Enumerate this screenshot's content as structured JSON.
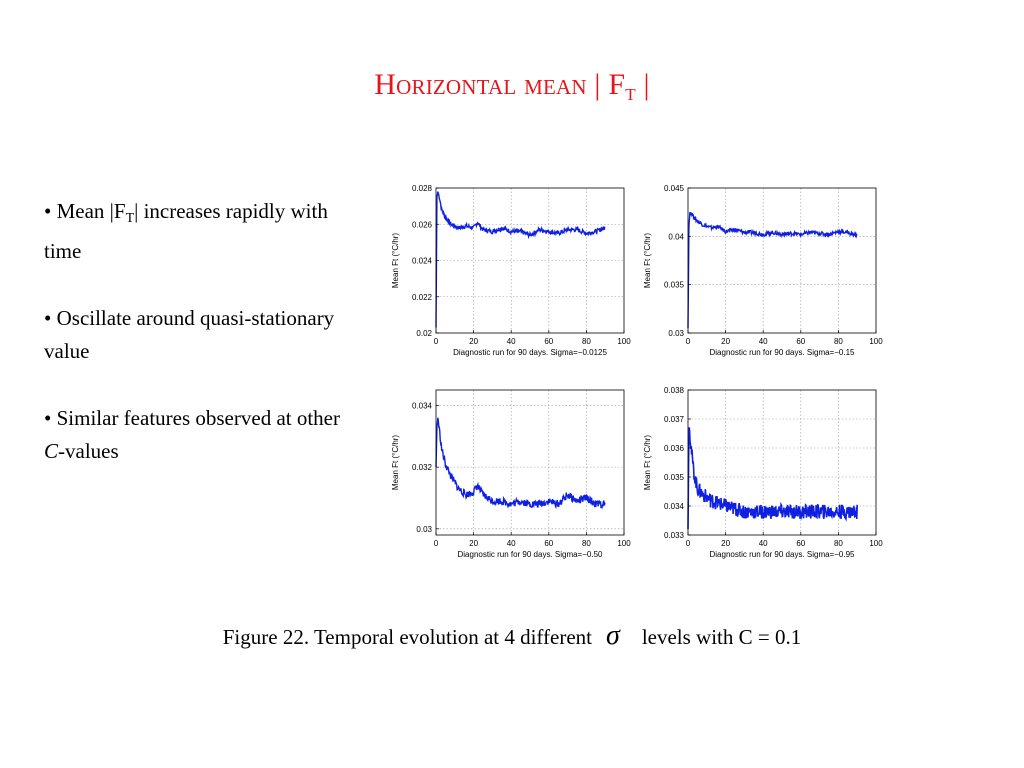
{
  "slide": {
    "title_main": "Horizontal mean | F",
    "title_sub": "T",
    "title_end": " |"
  },
  "bullets": {
    "b1_pre": "• Mean  |F",
    "b1_sub": "T",
    "b1_post": "|  increases rapidly with time",
    "b2": "• Oscillate around quasi-stationary value",
    "b3_pre": "• Similar features observed at other ",
    "b3_italic": "C",
    "b3_post": "-values"
  },
  "caption": {
    "pre": "Figure 22.  Temporal evolution  at  4  different",
    "symbol": "σ",
    "post": "levels with C = 0.1"
  },
  "colors": {
    "title": "#e8141b",
    "series": "#1020e0"
  },
  "chart_data": [
    {
      "type": "line",
      "ylabel": "Mean Ft (°C/hr)",
      "xlabel": "Diagnostic run for 90 days. Sigma=−0.0125",
      "xlim": [
        0,
        100
      ],
      "ylim": [
        0.02,
        0.028
      ],
      "xticks": [
        0,
        20,
        40,
        60,
        80,
        100
      ],
      "yticks": [
        0.02,
        0.022,
        0.024,
        0.026,
        0.028
      ],
      "ytick_labels": [
        "0.02",
        "0.022",
        "0.024",
        "0.026",
        "0.028"
      ],
      "x": [
        0,
        0.5,
        1,
        2,
        3,
        5,
        8,
        12,
        16,
        20,
        22,
        25,
        30,
        35,
        40,
        45,
        50,
        55,
        60,
        65,
        70,
        75,
        80,
        85,
        90
      ],
      "y": [
        0.0203,
        0.0275,
        0.0278,
        0.0274,
        0.0268,
        0.0264,
        0.026,
        0.0258,
        0.0259,
        0.0258,
        0.0261,
        0.0257,
        0.0256,
        0.0258,
        0.0256,
        0.0256,
        0.0254,
        0.0257,
        0.0256,
        0.0255,
        0.0257,
        0.0257,
        0.0255,
        0.0256,
        0.0258
      ],
      "noise": 0.00012
    },
    {
      "type": "line",
      "ylabel": "Mean Ft (°C/hr)",
      "xlabel": "Diagnostic run for 90 days. Sigma=−0.15",
      "xlim": [
        0,
        100
      ],
      "ylim": [
        0.03,
        0.045
      ],
      "xticks": [
        0,
        20,
        40,
        60,
        80,
        100
      ],
      "yticks": [
        0.03,
        0.035,
        0.04,
        0.045
      ],
      "ytick_labels": [
        "0.03",
        "0.035",
        "0.04",
        "0.045"
      ],
      "x": [
        0,
        0.5,
        1,
        2,
        3,
        5,
        8,
        12,
        16,
        20,
        25,
        30,
        35,
        40,
        45,
        50,
        55,
        60,
        65,
        70,
        75,
        80,
        85,
        90
      ],
      "y": [
        0.0305,
        0.041,
        0.0425,
        0.0424,
        0.042,
        0.0416,
        0.0412,
        0.0409,
        0.041,
        0.0405,
        0.0407,
        0.0404,
        0.0404,
        0.0402,
        0.0404,
        0.0402,
        0.0403,
        0.0402,
        0.0404,
        0.0403,
        0.0402,
        0.0405,
        0.0404,
        0.0401
      ],
      "noise": 0.0002
    },
    {
      "type": "line",
      "ylabel": "Mean Ft (°C/hr)",
      "xlabel": "Diagnostic run for 90 days. Sigma=−0.50",
      "xlim": [
        0,
        100
      ],
      "ylim": [
        0.0298,
        0.0345
      ],
      "xticks": [
        0,
        20,
        40,
        60,
        80,
        100
      ],
      "yticks": [
        0.03,
        0.032,
        0.034
      ],
      "ytick_labels": [
        "0.03",
        "0.032",
        "0.034"
      ],
      "x": [
        0,
        0.5,
        1,
        2,
        3,
        5,
        8,
        12,
        16,
        20,
        22,
        25,
        30,
        35,
        40,
        45,
        50,
        55,
        60,
        65,
        70,
        75,
        80,
        85,
        90
      ],
      "y": [
        0.032,
        0.0333,
        0.0336,
        0.0331,
        0.0326,
        0.0321,
        0.0317,
        0.0313,
        0.0311,
        0.0312,
        0.0314,
        0.0311,
        0.0309,
        0.0309,
        0.0308,
        0.0309,
        0.0308,
        0.0308,
        0.0309,
        0.0308,
        0.0311,
        0.0309,
        0.031,
        0.0308,
        0.0308
      ],
      "noise": 0.00012
    },
    {
      "type": "line",
      "ylabel": "Mean Ft (°C/hr)",
      "xlabel": "Diagnostic run for 90 days. Sigma=−0.95",
      "xlim": [
        0,
        100
      ],
      "ylim": [
        0.033,
        0.038
      ],
      "xticks": [
        0,
        20,
        40,
        60,
        80,
        100
      ],
      "yticks": [
        0.033,
        0.034,
        0.035,
        0.036,
        0.037,
        0.038
      ],
      "ytick_labels": [
        "0.033",
        "0.034",
        "0.035",
        "0.036",
        "0.037",
        "0.038"
      ],
      "x": [
        0,
        0.5,
        1,
        2,
        3,
        5,
        8,
        12,
        16,
        20,
        25,
        30,
        35,
        40,
        45,
        50,
        55,
        60,
        65,
        70,
        75,
        80,
        85,
        90
      ],
      "y": [
        0.0332,
        0.0368,
        0.0365,
        0.0358,
        0.0352,
        0.0346,
        0.0344,
        0.0342,
        0.0341,
        0.034,
        0.0339,
        0.0338,
        0.0338,
        0.0338,
        0.0338,
        0.0338,
        0.0338,
        0.0338,
        0.0338,
        0.0338,
        0.0338,
        0.0338,
        0.0338,
        0.0338
      ],
      "noise": 0.00025
    }
  ]
}
